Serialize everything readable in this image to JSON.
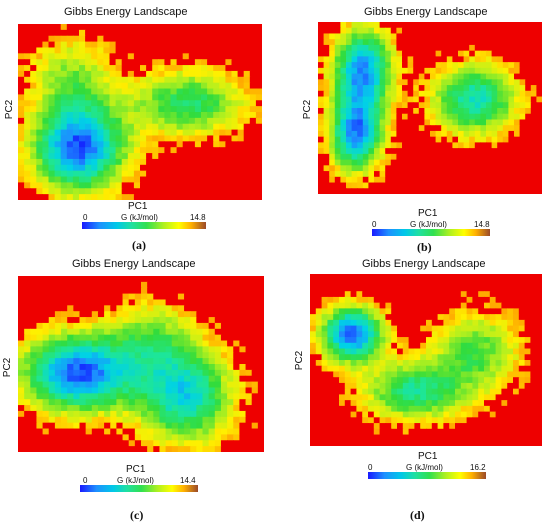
{
  "chart_data": [
    {
      "type": "heatmap",
      "panel": "(a)",
      "title": "Gibbs Energy Landscape",
      "xlabel": "PC1",
      "ylabel": "PC2",
      "colorbar": {
        "label": "G (kJ/mol)",
        "min": "0",
        "max": "14.8"
      },
      "basins": [
        {
          "x": 0.25,
          "y": 0.7,
          "depth": 1.0,
          "rx": 0.13,
          "ry": 0.17
        },
        {
          "x": 0.7,
          "y": 0.45,
          "depth": 0.55,
          "rx": 0.16,
          "ry": 0.13
        },
        {
          "x": 0.22,
          "y": 0.3,
          "depth": 0.35,
          "rx": 0.12,
          "ry": 0.16
        }
      ]
    },
    {
      "type": "heatmap",
      "panel": "(b)",
      "title": "Gibbs Energy Landscape",
      "xlabel": "PC1",
      "ylabel": "PC2",
      "colorbar": {
        "label": "G (kJ/mol)",
        "min": "0",
        "max": "14.8"
      },
      "basins": [
        {
          "x": 0.2,
          "y": 0.28,
          "depth": 0.9,
          "rx": 0.09,
          "ry": 0.16
        },
        {
          "x": 0.17,
          "y": 0.65,
          "depth": 0.9,
          "rx": 0.08,
          "ry": 0.15
        },
        {
          "x": 0.7,
          "y": 0.45,
          "depth": 0.7,
          "rx": 0.13,
          "ry": 0.14
        }
      ]
    },
    {
      "type": "heatmap",
      "panel": "(c)",
      "title": "Gibbs Energy Landscape",
      "xlabel": "PC1",
      "ylabel": "PC2",
      "colorbar": {
        "label": "G (kJ/mol)",
        "min": "0",
        "max": "14.4"
      },
      "basins": [
        {
          "x": 0.25,
          "y": 0.55,
          "depth": 1.0,
          "rx": 0.16,
          "ry": 0.15
        },
        {
          "x": 0.68,
          "y": 0.68,
          "depth": 0.75,
          "rx": 0.13,
          "ry": 0.18
        },
        {
          "x": 0.55,
          "y": 0.35,
          "depth": 0.35,
          "rx": 0.12,
          "ry": 0.15
        }
      ]
    },
    {
      "type": "heatmap",
      "panel": "(d)",
      "title": "Gibbs Energy Landscape",
      "xlabel": "PC1",
      "ylabel": "PC2",
      "colorbar": {
        "label": "G (kJ/mol)",
        "min": "0",
        "max": "16.2"
      },
      "basins": [
        {
          "x": 0.18,
          "y": 0.35,
          "depth": 1.0,
          "rx": 0.09,
          "ry": 0.11
        },
        {
          "x": 0.45,
          "y": 0.68,
          "depth": 0.6,
          "rx": 0.15,
          "ry": 0.12
        },
        {
          "x": 0.72,
          "y": 0.45,
          "depth": 0.45,
          "rx": 0.13,
          "ry": 0.16
        }
      ]
    }
  ]
}
